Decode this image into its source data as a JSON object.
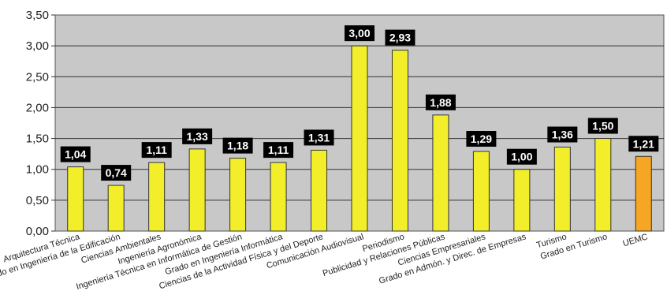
{
  "chart_data": {
    "type": "bar",
    "title": "",
    "xlabel": "",
    "ylabel": "",
    "ylim": [
      0,
      3.5
    ],
    "yticks": [
      0,
      0.5,
      1.0,
      1.5,
      2.0,
      2.5,
      3.0,
      3.5
    ],
    "ytick_labels": [
      "0,00",
      "0,50",
      "1,00",
      "1,50",
      "2,00",
      "2,50",
      "3,00",
      "3,50"
    ],
    "grid": true,
    "legend": "none",
    "categories": [
      "Arquitectura Técnica",
      "Grado en Ingeniería de la Edificación",
      "Ciencias Ambientales",
      "Ingeniería Agronómica",
      "Ingeniería Técnica en Informática de Gestión",
      "Grado en Ingeniería Informática",
      "Ciencias de la Actividad Física y del Deporte",
      "Comunicación Audiovisual",
      "Periodismo",
      "Publicidad y Relaciones Públicas",
      "Ciencias Empresariales",
      "Grado en Admón. y Direc. de Empresas",
      "Turismo",
      "Grado en Turismo",
      "UEMC"
    ],
    "values": [
      1.04,
      0.74,
      1.11,
      1.33,
      1.18,
      1.11,
      1.31,
      3.0,
      2.93,
      1.88,
      1.29,
      1.0,
      1.36,
      1.5,
      1.21
    ],
    "value_labels": [
      "1,04",
      "0,74",
      "1,11",
      "1,33",
      "1,18",
      "1,11",
      "1,31",
      "3,00",
      "2,93",
      "1,88",
      "1,29",
      "1,00",
      "1,36",
      "1,50",
      "1,21"
    ],
    "colors": {
      "bar": "#f2ef2a",
      "highlight_bar": "#f5a623",
      "plot_background": "#c8c8c8",
      "label_box": "#000000",
      "grid": "#333333"
    },
    "highlight_index": 14
  }
}
